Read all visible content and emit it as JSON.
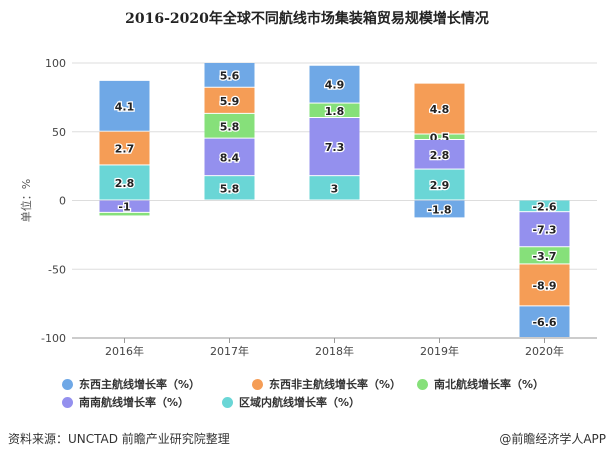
{
  "chart_data": {
    "type": "bar",
    "stacked": true,
    "title": "2016-2020年全球不同航线市场集装箱贸易规模增长情况",
    "ylabel": "单位：%",
    "ylim": [
      -100,
      100
    ],
    "yticks": [
      100,
      50,
      0,
      -50,
      -100
    ],
    "grid": true,
    "legend_position": "bottom",
    "categories": [
      "2016年",
      "2017年",
      "2018年",
      "2019年",
      "2020年"
    ],
    "series": [
      {
        "name": "东西主航线增长率（%）",
        "color": "#6fa8e6",
        "values": [
          4.1,
          5.6,
          4.9,
          -1.8,
          -6.6
        ],
        "y_range": [
          [
            50,
            87
          ],
          [
            82,
            100
          ],
          [
            70.5,
            98
          ],
          [
            0,
            -13
          ],
          [
            -77,
            -100
          ]
        ]
      },
      {
        "name": "东西非主航线增长率（%）",
        "color": "#f59d56",
        "values": [
          2.7,
          5.9,
          null,
          4.8,
          -8.9
        ],
        "y_range": [
          [
            25.5,
            50
          ],
          [
            63,
            82
          ],
          null,
          [
            48,
            85
          ],
          [
            -46.5,
            -77
          ]
        ]
      },
      {
        "name": "南北航线增长率（%）",
        "color": "#86e07a",
        "values": [
          null,
          5.8,
          1.8,
          0.5,
          -3.7
        ],
        "y_range": [
          [
            -9,
            -11.6
          ],
          [
            45,
            63
          ],
          [
            60,
            70.5
          ],
          [
            44,
            48
          ],
          [
            -34,
            -46.5
          ]
        ]
      },
      {
        "name": "南南航线增长率（%）",
        "color": "#9490ee",
        "values": [
          -1,
          8.4,
          7.3,
          2.8,
          -7.3
        ],
        "y_range": [
          [
            0,
            -9
          ],
          [
            17.7,
            45
          ],
          [
            17.7,
            60
          ],
          [
            22.5,
            44
          ],
          [
            -8.5,
            -34
          ]
        ]
      },
      {
        "name": "区域内航线增长率（%）",
        "color": "#6ad6d6",
        "values": [
          2.8,
          5.8,
          3,
          2.9,
          -2.6
        ],
        "y_range": [
          [
            0,
            25.5
          ],
          [
            0,
            17.7
          ],
          [
            0,
            17.7
          ],
          [
            0,
            22.5
          ],
          [
            0,
            -8.5
          ]
        ]
      }
    ]
  },
  "footer": {
    "source": "资料来源：UNCTAD 前瞻产业研究院整理",
    "brand": "@前瞻经济学人APP"
  }
}
